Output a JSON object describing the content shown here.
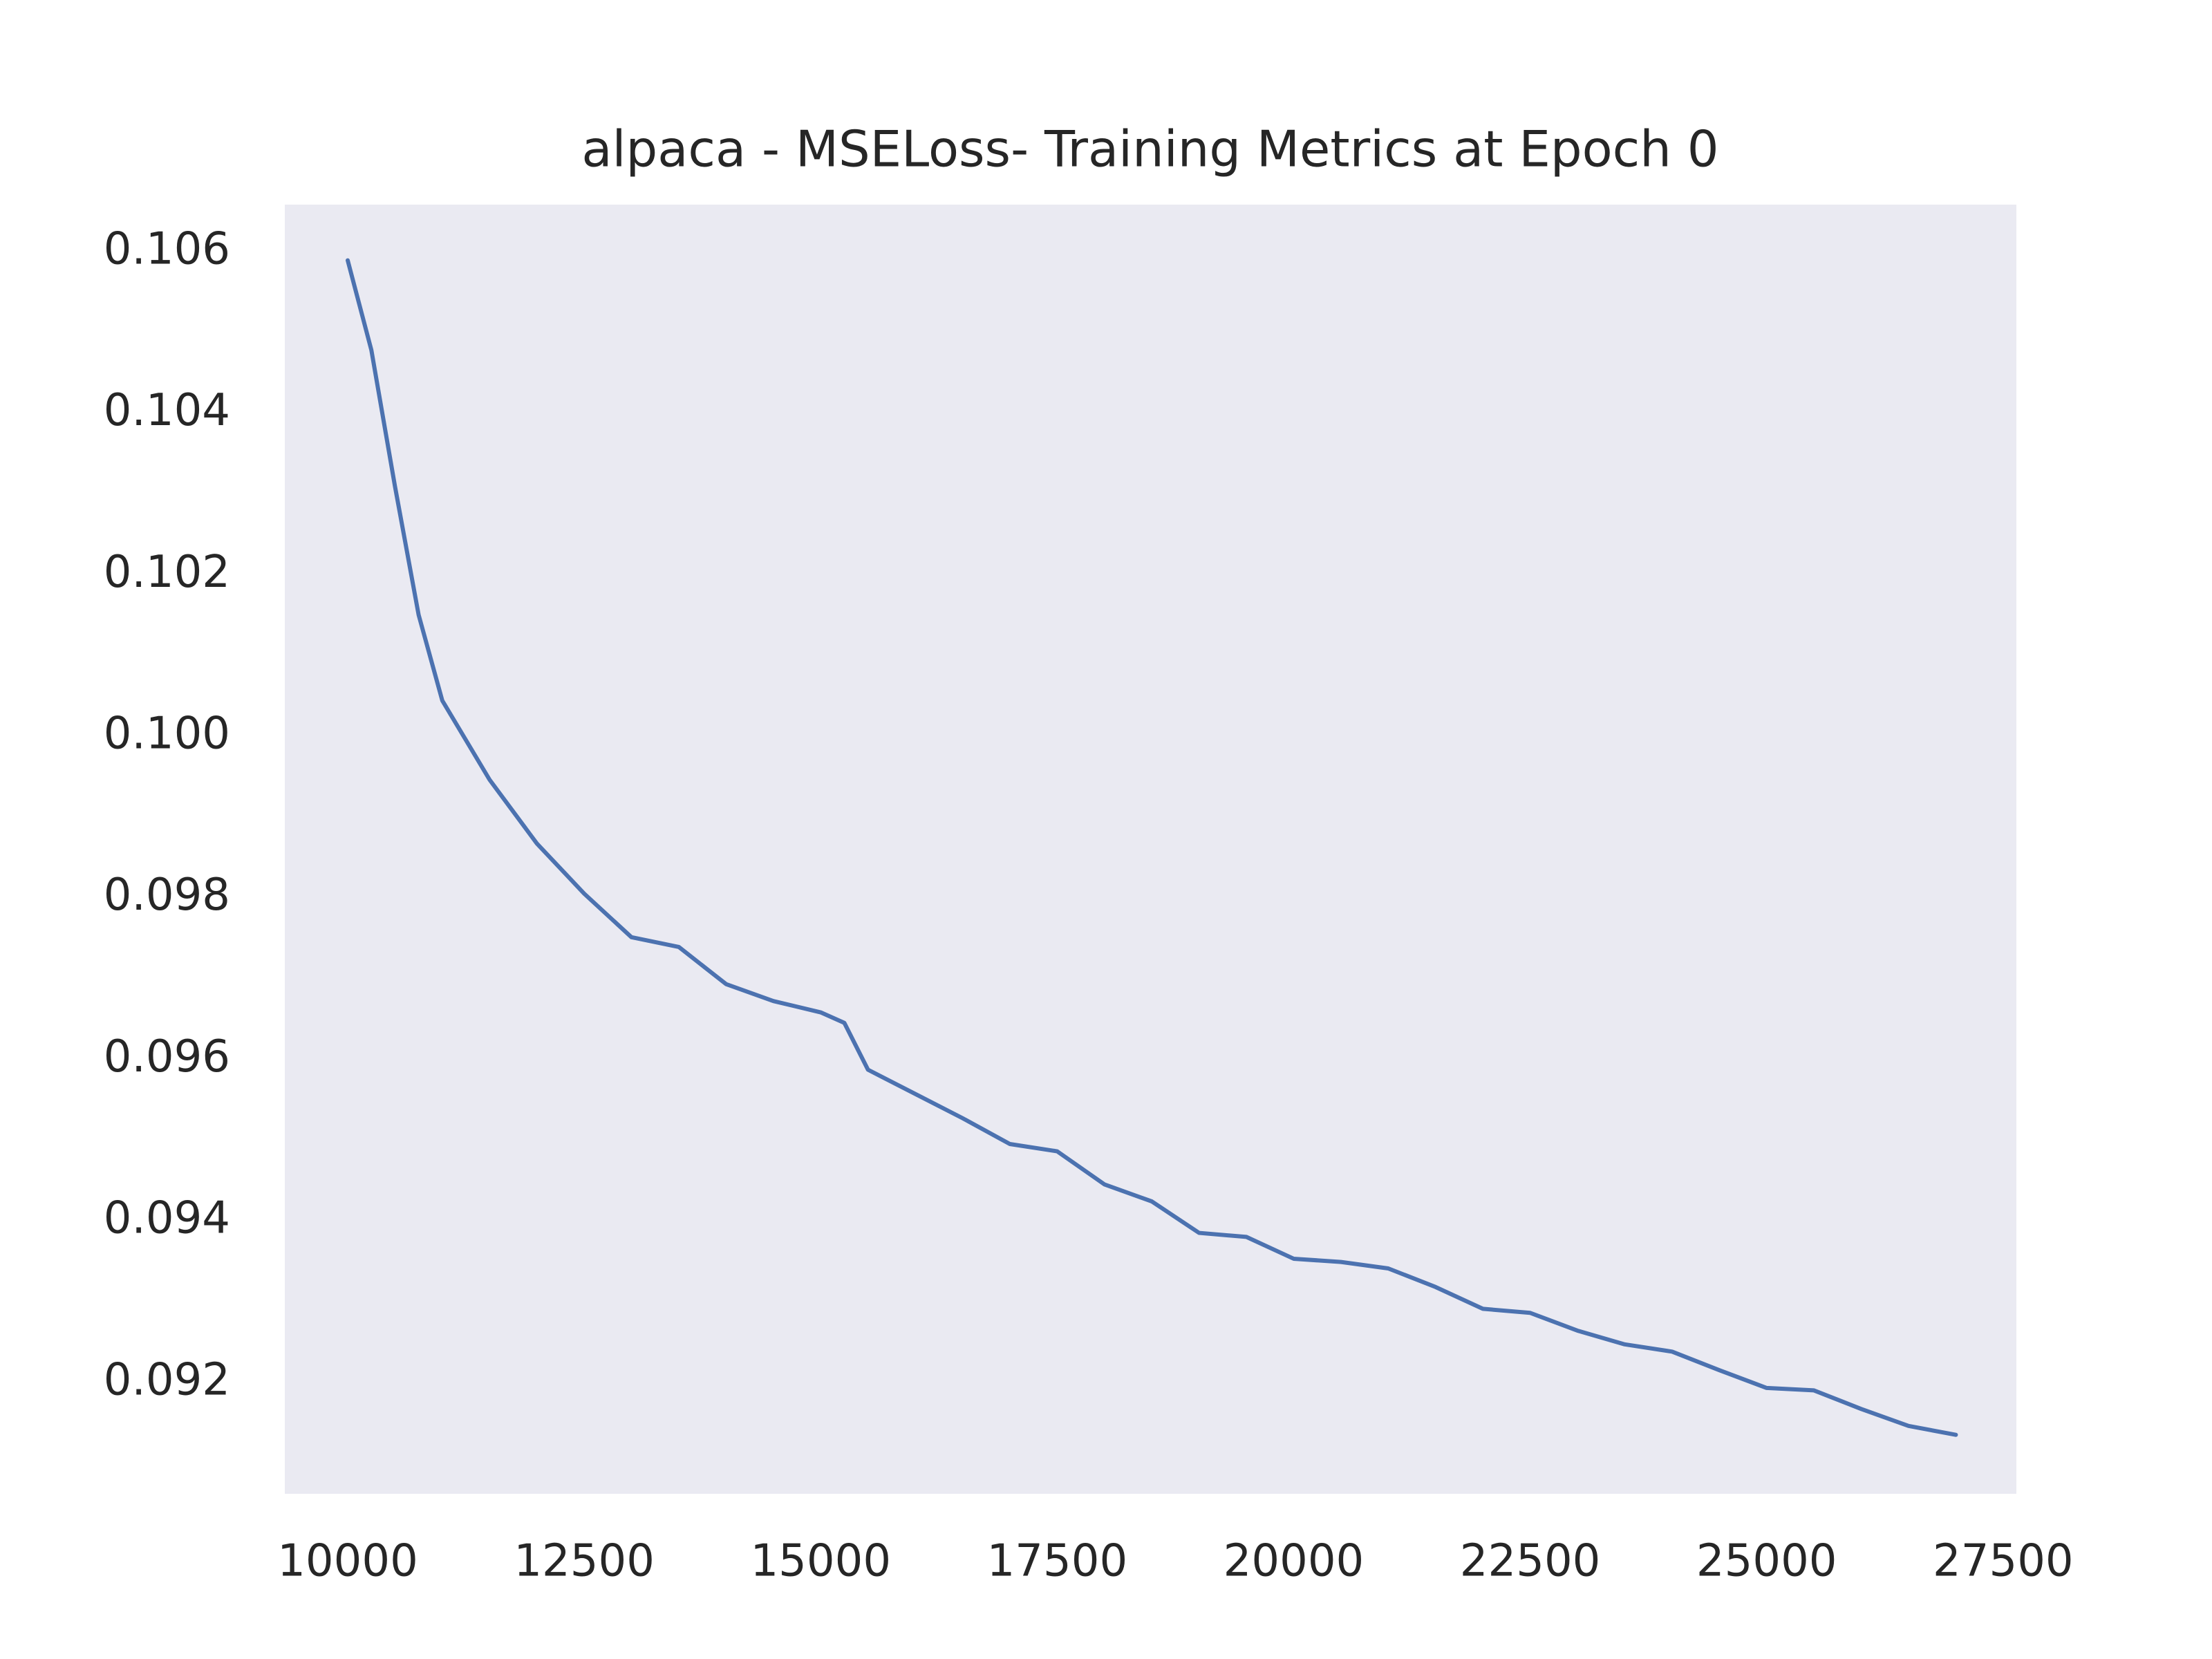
{
  "chart_data": {
    "type": "line",
    "title": "alpaca - MSELoss- Training Metrics at Epoch 0",
    "x": [
      10000,
      10250,
      10500,
      10750,
      11000,
      11500,
      12000,
      12500,
      13000,
      13500,
      14000,
      14500,
      15000,
      15250,
      15500,
      16000,
      16500,
      17000,
      17500,
      18000,
      18500,
      19000,
      19500,
      20000,
      20500,
      21000,
      21500,
      22000,
      22500,
      23000,
      23500,
      24000,
      24500,
      25000,
      25500,
      26000,
      26500,
      27000
    ],
    "series": [
      {
        "name": "MSELoss",
        "color": "#4c72b0",
        "values": [
          0.10589,
          0.10478,
          0.10309,
          0.1015,
          0.10044,
          0.09946,
          0.09867,
          0.09805,
          0.09751,
          0.09739,
          0.09693,
          0.09672,
          0.09658,
          0.09645,
          0.09587,
          0.09557,
          0.09527,
          0.09495,
          0.09486,
          0.09445,
          0.09424,
          0.09385,
          0.0938,
          0.09353,
          0.09349,
          0.09341,
          0.09318,
          0.09291,
          0.09286,
          0.09264,
          0.09247,
          0.09238,
          0.09215,
          0.09193,
          0.0919,
          0.09167,
          0.09146,
          0.09135
        ]
      }
    ],
    "xlim": [
      9335,
      27640
    ],
    "ylim": [
      0.09062,
      0.10658
    ],
    "xticks": [
      10000,
      12500,
      15000,
      17500,
      20000,
      22500,
      25000,
      27500
    ],
    "yticks": [
      0.092,
      0.094,
      0.096,
      0.098,
      {
        "value": 0.1,
        "label": "0.100"
      },
      0.102,
      0.104,
      0.106
    ],
    "background": "#eaeaf2",
    "grid": false
  }
}
